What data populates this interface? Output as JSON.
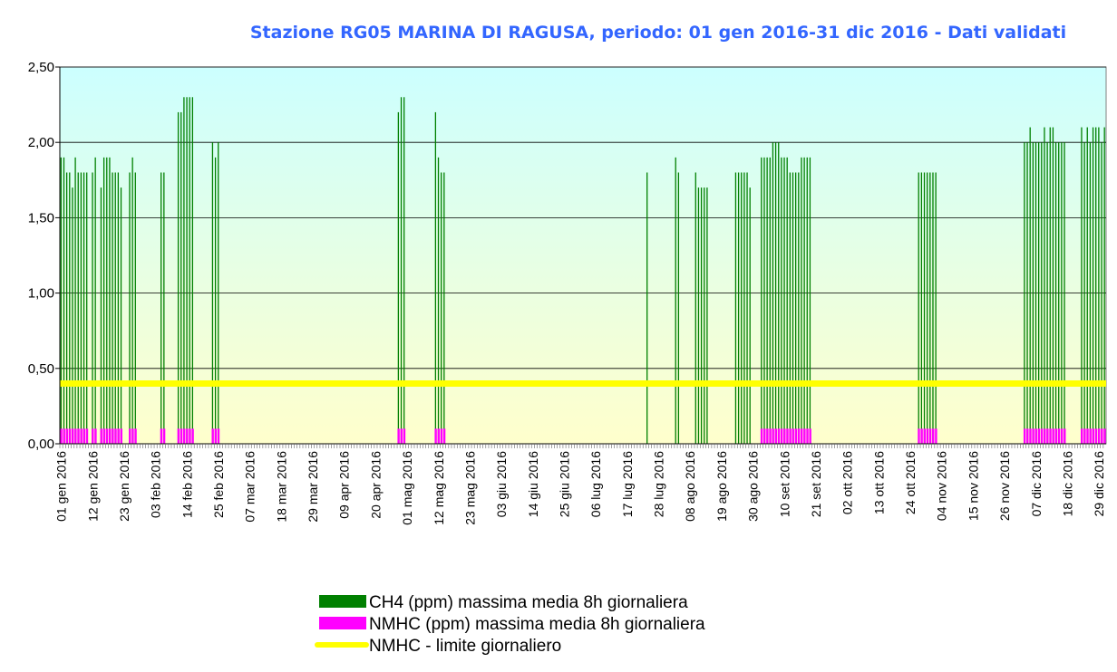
{
  "chart_data": {
    "type": "bar",
    "title": "Stazione RG05 MARINA DI RAGUSA, periodo: 01 gen 2016-31 dic 2016 - Dati validati",
    "ylim": [
      0,
      2.5
    ],
    "yticks": [
      {
        "value": 0,
        "label": "0,00"
      },
      {
        "value": 0.5,
        "label": "0,50"
      },
      {
        "value": 1,
        "label": "1,00"
      },
      {
        "value": 1.5,
        "label": "1,50"
      },
      {
        "value": 2,
        "label": "2,00"
      },
      {
        "value": 2.5,
        "label": "2,50"
      }
    ],
    "grid": true,
    "categories": [
      "01 gen 2016",
      null,
      null,
      null,
      null,
      null,
      null,
      null,
      null,
      null,
      null,
      "12 gen 2016",
      null,
      null,
      null,
      null,
      null,
      null,
      null,
      null,
      null,
      null,
      "23 gen 2016",
      null,
      null,
      null,
      null,
      null,
      null,
      null,
      null,
      null,
      null,
      "03 feb 2016",
      null,
      null,
      null,
      null,
      null,
      null,
      null,
      null,
      null,
      null,
      "14 feb 2016",
      null,
      null,
      null,
      null,
      null,
      null,
      null,
      null,
      null,
      null,
      "25 feb 2016",
      null,
      null,
      null,
      null,
      null,
      null,
      null,
      null,
      null,
      null,
      "07 mar 2016",
      null,
      null,
      null,
      null,
      null,
      null,
      null,
      null,
      null,
      null,
      "18 mar 2016",
      null,
      null,
      null,
      null,
      null,
      null,
      null,
      null,
      null,
      null,
      "29 mar 2016",
      null,
      null,
      null,
      null,
      null,
      null,
      null,
      null,
      null,
      null,
      "09 apr 2016",
      null,
      null,
      null,
      null,
      null,
      null,
      null,
      null,
      null,
      null,
      "20 apr 2016",
      null,
      null,
      null,
      null,
      null,
      null,
      null,
      null,
      null,
      null,
      "01 mag 2016",
      null,
      null,
      null,
      null,
      null,
      null,
      null,
      null,
      null,
      null,
      "12 mag 2016",
      null,
      null,
      null,
      null,
      null,
      null,
      null,
      null,
      null,
      null,
      "23 mag 2016",
      null,
      null,
      null,
      null,
      null,
      null,
      null,
      null,
      null,
      null,
      "03 giu 2016",
      null,
      null,
      null,
      null,
      null,
      null,
      null,
      null,
      null,
      null,
      "14 giu 2016",
      null,
      null,
      null,
      null,
      null,
      null,
      null,
      null,
      null,
      null,
      "25 giu 2016",
      null,
      null,
      null,
      null,
      null,
      null,
      null,
      null,
      null,
      null,
      "06 lug 2016",
      null,
      null,
      null,
      null,
      null,
      null,
      null,
      null,
      null,
      null,
      "17 lug 2016",
      null,
      null,
      null,
      null,
      null,
      null,
      null,
      null,
      null,
      null,
      "28 lug 2016",
      null,
      null,
      null,
      null,
      null,
      null,
      null,
      null,
      null,
      null,
      "08 ago 2016",
      null,
      null,
      null,
      null,
      null,
      null,
      null,
      null,
      null,
      null,
      "19 ago 2016",
      null,
      null,
      null,
      null,
      null,
      null,
      null,
      null,
      null,
      null,
      "30 ago 2016",
      null,
      null,
      null,
      null,
      null,
      null,
      null,
      null,
      null,
      null,
      "10 set 2016",
      null,
      null,
      null,
      null,
      null,
      null,
      null,
      null,
      null,
      null,
      "21 set 2016",
      null,
      null,
      null,
      null,
      null,
      null,
      null,
      null,
      null,
      null,
      "02 ott 2016",
      null,
      null,
      null,
      null,
      null,
      null,
      null,
      null,
      null,
      null,
      "13 ott 2016",
      null,
      null,
      null,
      null,
      null,
      null,
      null,
      null,
      null,
      null,
      "24 ott 2016",
      null,
      null,
      null,
      null,
      null,
      null,
      null,
      null,
      null,
      null,
      "04 nov 2016",
      null,
      null,
      null,
      null,
      null,
      null,
      null,
      null,
      null,
      null,
      "15 nov 2016",
      null,
      null,
      null,
      null,
      null,
      null,
      null,
      null,
      null,
      null,
      "26 nov 2016",
      null,
      null,
      null,
      null,
      null,
      null,
      null,
      null,
      null,
      null,
      "07 dic 2016",
      null,
      null,
      null,
      null,
      null,
      null,
      null,
      null,
      null,
      null,
      "18 dic 2016",
      null,
      null,
      null,
      null,
      null,
      null,
      null,
      null,
      null,
      null,
      "29 dic 2016",
      null,
      null
    ],
    "series": [
      {
        "name": "CH4 (ppm) massima media 8h giornaliera",
        "color": "#008000",
        "values": [
          1.9,
          1.9,
          1.8,
          1.8,
          1.7,
          1.9,
          1.8,
          1.8,
          1.8,
          1.8,
          null,
          1.8,
          1.9,
          null,
          1.7,
          1.9,
          1.9,
          1.9,
          1.8,
          1.8,
          1.8,
          1.7,
          null,
          null,
          1.8,
          1.9,
          1.8,
          null,
          null,
          null,
          null,
          null,
          null,
          null,
          null,
          1.8,
          1.8,
          null,
          null,
          null,
          null,
          2.2,
          2.2,
          2.3,
          2.3,
          2.3,
          2.3,
          null,
          null,
          null,
          null,
          null,
          null,
          2.0,
          1.9,
          2.0,
          null,
          null,
          null,
          null,
          null,
          null,
          null,
          null,
          null,
          null,
          null,
          null,
          null,
          null,
          null,
          null,
          null,
          null,
          null,
          null,
          null,
          null,
          null,
          null,
          null,
          null,
          null,
          null,
          null,
          null,
          null,
          null,
          null,
          null,
          null,
          null,
          null,
          null,
          null,
          null,
          null,
          null,
          null,
          null,
          null,
          null,
          null,
          null,
          null,
          null,
          null,
          null,
          null,
          null,
          null,
          null,
          null,
          null,
          null,
          null,
          null,
          null,
          2.2,
          2.3,
          2.3,
          null,
          null,
          null,
          null,
          null,
          null,
          null,
          null,
          null,
          null,
          2.2,
          1.9,
          1.8,
          1.8,
          null,
          null,
          null,
          null,
          null,
          null,
          null,
          null,
          null,
          null,
          null,
          null,
          null,
          null,
          null,
          null,
          null,
          null,
          null,
          null,
          null,
          null,
          null,
          null,
          null,
          null,
          null,
          null,
          null,
          null,
          null,
          null,
          null,
          null,
          null,
          null,
          null,
          null,
          null,
          null,
          null,
          null,
          null,
          null,
          null,
          null,
          null,
          null,
          null,
          null,
          null,
          null,
          null,
          null,
          null,
          null,
          null,
          null,
          null,
          null,
          null,
          null,
          null,
          null,
          null,
          null,
          null,
          null,
          null,
          null,
          1.8,
          null,
          null,
          null,
          null,
          null,
          null,
          null,
          null,
          null,
          1.9,
          1.8,
          null,
          null,
          null,
          null,
          null,
          1.8,
          1.7,
          1.7,
          1.7,
          1.7,
          null,
          null,
          null,
          null,
          null,
          null,
          null,
          null,
          null,
          1.8,
          1.8,
          1.8,
          1.8,
          1.8,
          1.7,
          null,
          null,
          null,
          1.9,
          1.9,
          1.9,
          1.9,
          2.0,
          2.0,
          2.0,
          1.9,
          1.9,
          1.9,
          1.8,
          1.8,
          1.8,
          1.8,
          1.9,
          1.9,
          1.9,
          1.9,
          null,
          null,
          null,
          null,
          null,
          null,
          null,
          null,
          null,
          null,
          null,
          null,
          null,
          null,
          null,
          null,
          null,
          null,
          null,
          null,
          null,
          null,
          null,
          null,
          null,
          null,
          null,
          null,
          null,
          null,
          null,
          null,
          null,
          null,
          null,
          null,
          null,
          1.8,
          1.8,
          1.8,
          1.8,
          1.8,
          1.8,
          1.8,
          null,
          null,
          null,
          null,
          null,
          null,
          null,
          null,
          null,
          null,
          null,
          null,
          null,
          null,
          null,
          null,
          null,
          null,
          null,
          null,
          null,
          null,
          null,
          null,
          null,
          null,
          null,
          null,
          null,
          null,
          2.0,
          2.0,
          2.1,
          2.0,
          2.0,
          2.0,
          2.0,
          2.1,
          2.0,
          2.1,
          2.1,
          2.0,
          2.0,
          2.0,
          2.0,
          null,
          null,
          null,
          null,
          null,
          2.1,
          2.0,
          2.1,
          2.0,
          2.1,
          2.1,
          2.1,
          2.0,
          2.1
        ]
      },
      {
        "name": "NMHC (ppm) massima media 8h giornaliera",
        "color": "#ff00ff",
        "values": [
          0.1,
          0.1,
          0.1,
          0.1,
          0.1,
          0.1,
          0.1,
          0.1,
          0.1,
          0.1,
          null,
          0.1,
          0.1,
          null,
          0.1,
          0.1,
          0.1,
          0.1,
          0.1,
          0.1,
          0.1,
          0.1,
          null,
          null,
          0.1,
          0.1,
          0.1,
          null,
          null,
          null,
          null,
          null,
          null,
          null,
          null,
          0.1,
          0.1,
          null,
          null,
          null,
          null,
          0.1,
          0.1,
          0.1,
          0.1,
          0.1,
          0.1,
          null,
          null,
          null,
          null,
          null,
          null,
          0.1,
          0.1,
          0.1,
          null,
          null,
          null,
          null,
          null,
          null,
          null,
          null,
          null,
          null,
          null,
          null,
          null,
          null,
          null,
          null,
          null,
          null,
          null,
          null,
          null,
          null,
          null,
          null,
          null,
          null,
          null,
          null,
          null,
          null,
          null,
          null,
          null,
          null,
          null,
          null,
          null,
          null,
          null,
          null,
          null,
          null,
          null,
          null,
          null,
          null,
          null,
          null,
          null,
          null,
          null,
          null,
          null,
          null,
          null,
          null,
          null,
          null,
          null,
          null,
          null,
          null,
          0.1,
          0.1,
          0.1,
          null,
          null,
          null,
          null,
          null,
          null,
          null,
          null,
          null,
          null,
          0.1,
          0.1,
          0.1,
          0.1,
          null,
          null,
          null,
          null,
          null,
          null,
          null,
          null,
          null,
          null,
          null,
          null,
          null,
          null,
          null,
          null,
          null,
          null,
          null,
          null,
          null,
          null,
          null,
          null,
          null,
          null,
          null,
          null,
          null,
          null,
          null,
          null,
          null,
          null,
          null,
          null,
          null,
          null,
          null,
          null,
          null,
          null,
          null,
          null,
          null,
          null,
          null,
          null,
          null,
          null,
          null,
          null,
          null,
          null,
          null,
          null,
          null,
          null,
          null,
          null,
          null,
          null,
          null,
          null,
          null,
          null,
          null,
          null,
          null,
          null,
          null,
          null,
          null,
          null,
          null,
          null,
          null,
          null,
          null,
          null,
          null,
          null,
          null,
          null,
          null,
          null,
          null,
          null,
          null,
          null,
          null,
          null,
          null,
          null,
          null,
          null,
          null,
          null,
          null,
          null,
          null,
          null,
          null,
          null,
          null,
          null,
          null,
          null,
          null,
          null,
          0.1,
          0.1,
          0.1,
          0.1,
          0.1,
          0.1,
          0.1,
          0.1,
          0.1,
          0.1,
          0.1,
          0.1,
          0.1,
          0.1,
          0.1,
          0.1,
          0.1,
          0.1,
          null,
          null,
          null,
          null,
          null,
          null,
          null,
          null,
          null,
          null,
          null,
          null,
          null,
          null,
          null,
          null,
          null,
          null,
          null,
          null,
          null,
          null,
          null,
          null,
          null,
          null,
          null,
          null,
          null,
          null,
          null,
          null,
          null,
          null,
          null,
          null,
          null,
          0.1,
          0.1,
          0.1,
          0.1,
          0.1,
          0.1,
          0.1,
          null,
          null,
          null,
          null,
          null,
          null,
          null,
          null,
          null,
          null,
          null,
          null,
          null,
          null,
          null,
          null,
          null,
          null,
          null,
          null,
          null,
          null,
          null,
          null,
          null,
          null,
          null,
          null,
          null,
          null,
          0.1,
          0.1,
          0.1,
          0.1,
          0.1,
          0.1,
          0.1,
          0.1,
          0.1,
          0.1,
          0.1,
          0.1,
          0.1,
          0.1,
          0.1,
          null,
          null,
          null,
          null,
          null,
          0.1,
          0.1,
          0.1,
          0.1,
          0.1,
          0.1,
          0.1,
          0.1,
          0.1
        ]
      }
    ],
    "limit": {
      "name": "NMHC - limite giornaliero",
      "color": "#ffff00",
      "value": 0.4
    }
  }
}
